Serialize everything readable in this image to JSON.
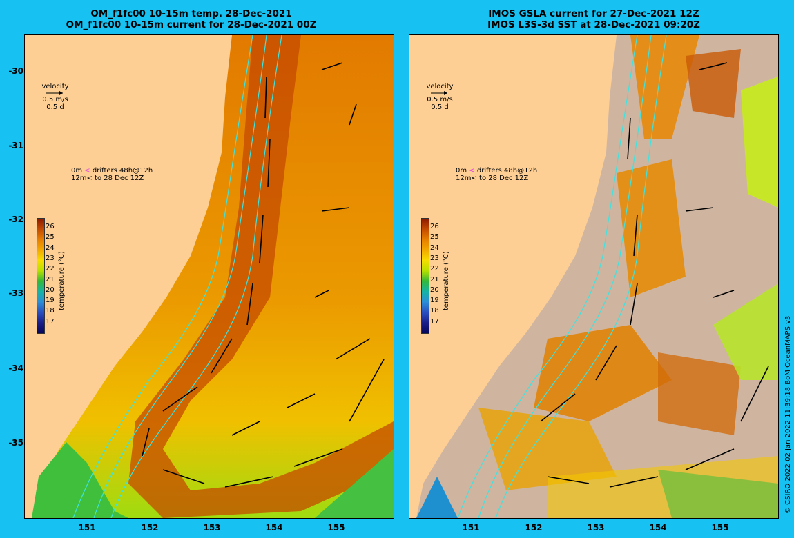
{
  "left": {
    "title_line1": "OM_f1fc00 10-15m temp. 28-Dec-2021",
    "title_line2": "OM_f1fc00 10-15m current for 28-Dec-2021 00Z"
  },
  "right": {
    "title_line1": "IMOS GSLA current for 27-Dec-2021 12Z",
    "title_line2": "IMOS L3S-3d SST at 28-Dec-2021 09:20Z"
  },
  "legend": {
    "velocity_label": "velocity",
    "velocity_speed": "0.5 m/s",
    "velocity_time": "0.5 d",
    "drifter_line1_prefix": "0m",
    "drifter_line1_text": "drifters 48h@12h",
    "drifter_line2_prefix": "12m",
    "drifter_line2_text": "to 28 Dec 12Z"
  },
  "colorbar": {
    "title": "temperature (°C)",
    "ticks": [
      "26",
      "25",
      "24",
      "23",
      "22",
      "21",
      "20",
      "19",
      "18",
      "17"
    ],
    "colors": [
      "#8b1a00",
      "#c24a00",
      "#e67e00",
      "#f2a800",
      "#f7dd00",
      "#b8e000",
      "#35b838",
      "#17b3a4",
      "#2a8fd8",
      "#2a4fc0",
      "#1a1f8a",
      "#07075a"
    ]
  },
  "axes": {
    "lat_labels": [
      "-30",
      "-31",
      "-32",
      "-33",
      "-34",
      "-35"
    ],
    "lon_labels": [
      "151",
      "152",
      "153",
      "154",
      "155"
    ]
  },
  "credit": "© CSIRO 2022   02 Jan 2022 11:39:18 BoM OceanMAPS v3",
  "colors": {
    "land": "#fdcf95",
    "background": "#17c2f3",
    "contour": "#3de3e0",
    "cloud_mask": "#cfb5a0",
    "drifter_0m": "#e040e0"
  }
}
